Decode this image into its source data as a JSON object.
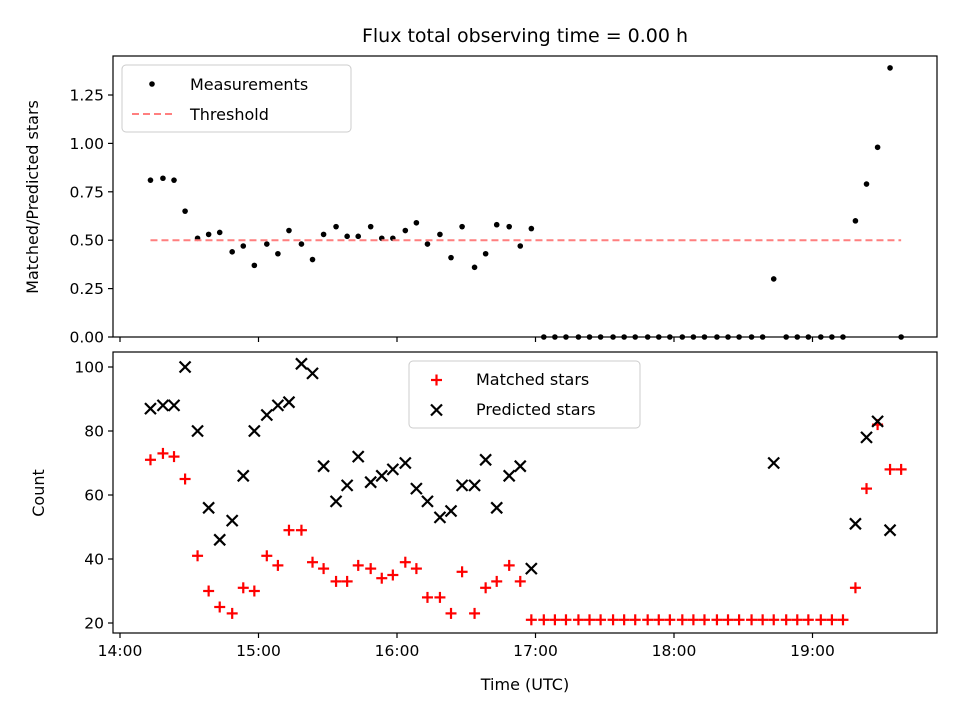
{
  "chart_data": [
    {
      "type": "scatter",
      "title": "Flux total observing time = 0.00 h",
      "ylabel": "Matched/Predicted stars",
      "xlabel": "",
      "ylim": [
        0,
        1.45
      ],
      "yticks": [
        "0.00",
        "0.25",
        "0.50",
        "0.75",
        "1.00",
        "1.25"
      ],
      "legend_location": "upper-left",
      "series": [
        {
          "name": "Measurements",
          "color": "#000000",
          "marker": "dot",
          "points": [
            [
              14.22,
              0.81
            ],
            [
              14.31,
              0.82
            ],
            [
              14.39,
              0.81
            ],
            [
              14.47,
              0.65
            ],
            [
              14.56,
              0.51
            ],
            [
              14.64,
              0.53
            ],
            [
              14.72,
              0.54
            ],
            [
              14.81,
              0.44
            ],
            [
              14.89,
              0.47
            ],
            [
              14.97,
              0.37
            ],
            [
              15.06,
              0.48
            ],
            [
              15.14,
              0.43
            ],
            [
              15.22,
              0.55
            ],
            [
              15.31,
              0.48
            ],
            [
              15.39,
              0.4
            ],
            [
              15.47,
              0.53
            ],
            [
              15.56,
              0.57
            ],
            [
              15.64,
              0.52
            ],
            [
              15.72,
              0.52
            ],
            [
              15.81,
              0.57
            ],
            [
              15.89,
              0.51
            ],
            [
              15.97,
              0.51
            ],
            [
              16.06,
              0.55
            ],
            [
              16.14,
              0.59
            ],
            [
              16.22,
              0.48
            ],
            [
              16.31,
              0.53
            ],
            [
              16.39,
              0.41
            ],
            [
              16.47,
              0.57
            ],
            [
              16.56,
              0.36
            ],
            [
              16.64,
              0.43
            ],
            [
              16.72,
              0.58
            ],
            [
              16.81,
              0.57
            ],
            [
              16.89,
              0.47
            ],
            [
              16.97,
              0.56
            ],
            [
              17.06,
              0
            ],
            [
              17.14,
              0
            ],
            [
              17.22,
              0
            ],
            [
              17.31,
              0
            ],
            [
              17.39,
              0
            ],
            [
              17.47,
              0
            ],
            [
              17.56,
              0
            ],
            [
              17.64,
              0
            ],
            [
              17.72,
              0
            ],
            [
              17.81,
              0
            ],
            [
              17.89,
              0
            ],
            [
              17.97,
              0
            ],
            [
              18.06,
              0
            ],
            [
              18.14,
              0
            ],
            [
              18.22,
              0
            ],
            [
              18.31,
              0
            ],
            [
              18.39,
              0
            ],
            [
              18.47,
              0
            ],
            [
              18.56,
              0
            ],
            [
              18.64,
              0
            ],
            [
              18.72,
              0.3
            ],
            [
              18.81,
              0
            ],
            [
              18.89,
              0
            ],
            [
              18.97,
              0
            ],
            [
              19.06,
              0
            ],
            [
              19.14,
              0
            ],
            [
              19.22,
              0
            ],
            [
              19.31,
              0.6
            ],
            [
              19.39,
              0.79
            ],
            [
              19.47,
              0.98
            ],
            [
              19.56,
              1.39
            ],
            [
              19.64,
              0
            ]
          ]
        },
        {
          "name": "Threshold",
          "color": "#ff7f7f",
          "style": "dashed",
          "points": [
            [
              14.22,
              0.5
            ],
            [
              19.64,
              0.5
            ]
          ]
        }
      ]
    },
    {
      "type": "scatter",
      "title": "",
      "xlabel": "Time (UTC)",
      "ylabel": "Count",
      "ylim": [
        18,
        105
      ],
      "yticks": [
        "20",
        "40",
        "60",
        "80",
        "100"
      ],
      "xticks": [
        "14:00",
        "15:00",
        "16:00",
        "17:00",
        "18:00",
        "19:00"
      ],
      "legend_location": "upper-center",
      "series": [
        {
          "name": "Matched stars",
          "color": "#ff0000",
          "marker": "plus",
          "points": [
            [
              14.22,
              71
            ],
            [
              14.31,
              73
            ],
            [
              14.39,
              72
            ],
            [
              14.47,
              65
            ],
            [
              14.56,
              41
            ],
            [
              14.64,
              30
            ],
            [
              14.72,
              25
            ],
            [
              14.81,
              23
            ],
            [
              14.89,
              31
            ],
            [
              14.97,
              30
            ],
            [
              15.06,
              41
            ],
            [
              15.14,
              38
            ],
            [
              15.22,
              49
            ],
            [
              15.31,
              49
            ],
            [
              15.39,
              39
            ],
            [
              15.47,
              37
            ],
            [
              15.56,
              33
            ],
            [
              15.64,
              33
            ],
            [
              15.72,
              38
            ],
            [
              15.81,
              37
            ],
            [
              15.89,
              34
            ],
            [
              15.97,
              35
            ],
            [
              16.06,
              39
            ],
            [
              16.14,
              37
            ],
            [
              16.22,
              28
            ],
            [
              16.31,
              28
            ],
            [
              16.39,
              23
            ],
            [
              16.47,
              36
            ],
            [
              16.56,
              23
            ],
            [
              16.64,
              31
            ],
            [
              16.72,
              33
            ],
            [
              16.81,
              38
            ],
            [
              16.89,
              33
            ],
            [
              16.97,
              21
            ],
            [
              17.06,
              21
            ],
            [
              17.14,
              21
            ],
            [
              17.22,
              21
            ],
            [
              17.31,
              21
            ],
            [
              17.39,
              21
            ],
            [
              17.47,
              21
            ],
            [
              17.56,
              21
            ],
            [
              17.64,
              21
            ],
            [
              17.72,
              21
            ],
            [
              17.81,
              21
            ],
            [
              17.89,
              21
            ],
            [
              17.97,
              21
            ],
            [
              18.06,
              21
            ],
            [
              18.14,
              21
            ],
            [
              18.22,
              21
            ],
            [
              18.31,
              21
            ],
            [
              18.39,
              21
            ],
            [
              18.47,
              21
            ],
            [
              18.56,
              21
            ],
            [
              18.64,
              21
            ],
            [
              18.72,
              21
            ],
            [
              18.81,
              21
            ],
            [
              18.89,
              21
            ],
            [
              18.97,
              21
            ],
            [
              19.06,
              21
            ],
            [
              19.14,
              21
            ],
            [
              19.22,
              21
            ],
            [
              19.31,
              31
            ],
            [
              19.39,
              62
            ],
            [
              19.47,
              82
            ],
            [
              19.56,
              68
            ],
            [
              19.64,
              68
            ]
          ]
        },
        {
          "name": "Predicted stars",
          "color": "#000000",
          "marker": "x",
          "points": [
            [
              14.22,
              87
            ],
            [
              14.31,
              88
            ],
            [
              14.39,
              88
            ],
            [
              14.47,
              100
            ],
            [
              14.56,
              80
            ],
            [
              14.64,
              56
            ],
            [
              14.72,
              46
            ],
            [
              14.81,
              52
            ],
            [
              14.89,
              66
            ],
            [
              14.97,
              80
            ],
            [
              15.06,
              85
            ],
            [
              15.14,
              88
            ],
            [
              15.22,
              89
            ],
            [
              15.31,
              101
            ],
            [
              15.39,
              98
            ],
            [
              15.47,
              69
            ],
            [
              15.56,
              58
            ],
            [
              15.64,
              63
            ],
            [
              15.72,
              72
            ],
            [
              15.81,
              64
            ],
            [
              15.89,
              66
            ],
            [
              15.97,
              68
            ],
            [
              16.06,
              70
            ],
            [
              16.14,
              62
            ],
            [
              16.22,
              58
            ],
            [
              16.31,
              53
            ],
            [
              16.39,
              55
            ],
            [
              16.47,
              63
            ],
            [
              16.56,
              63
            ],
            [
              16.64,
              71
            ],
            [
              16.72,
              56
            ],
            [
              16.81,
              66
            ],
            [
              16.89,
              69
            ],
            [
              16.97,
              37
            ],
            [
              18.72,
              70
            ],
            [
              19.31,
              51
            ],
            [
              19.39,
              78
            ],
            [
              19.47,
              83
            ],
            [
              19.56,
              49
            ]
          ]
        }
      ]
    }
  ]
}
